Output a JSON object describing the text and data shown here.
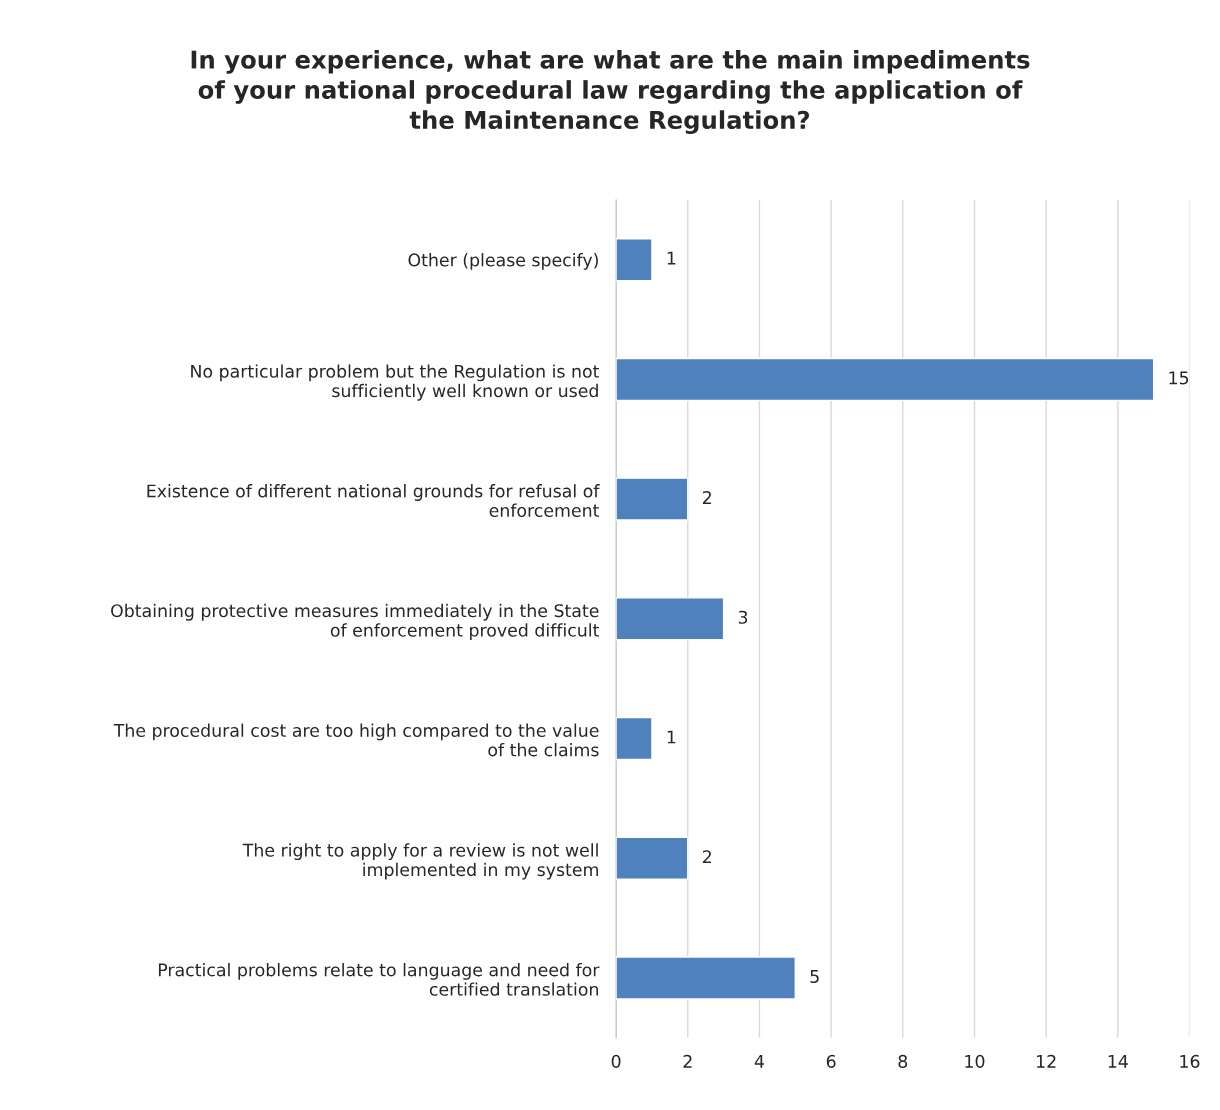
{
  "chart_data": {
    "type": "bar",
    "orientation": "horizontal",
    "title": "In your experience, what are what are the main impediments of your national procedural law regarding the application of the Maintenance Regulation?",
    "categories": [
      "Other (please specify)",
      "No particular problem but the Regulation is not sufficiently well known or used",
      "Existence of different national grounds for refusal of enforcement",
      "Obtaining protective measures immediately in the State of enforcement proved difficult",
      "The procedural cost are too high compared to the value of the claims",
      "The right to apply for a review is not well implemented in my system",
      "Practical problems relate to language and need for certified translation"
    ],
    "values": [
      1,
      15,
      2,
      3,
      1,
      2,
      5
    ],
    "color": "#4f81bd",
    "xlim": [
      0,
      16
    ],
    "xticks": [
      0,
      2,
      4,
      6,
      8,
      10,
      12,
      14,
      16
    ],
    "grid": "x",
    "data_labels": true
  }
}
